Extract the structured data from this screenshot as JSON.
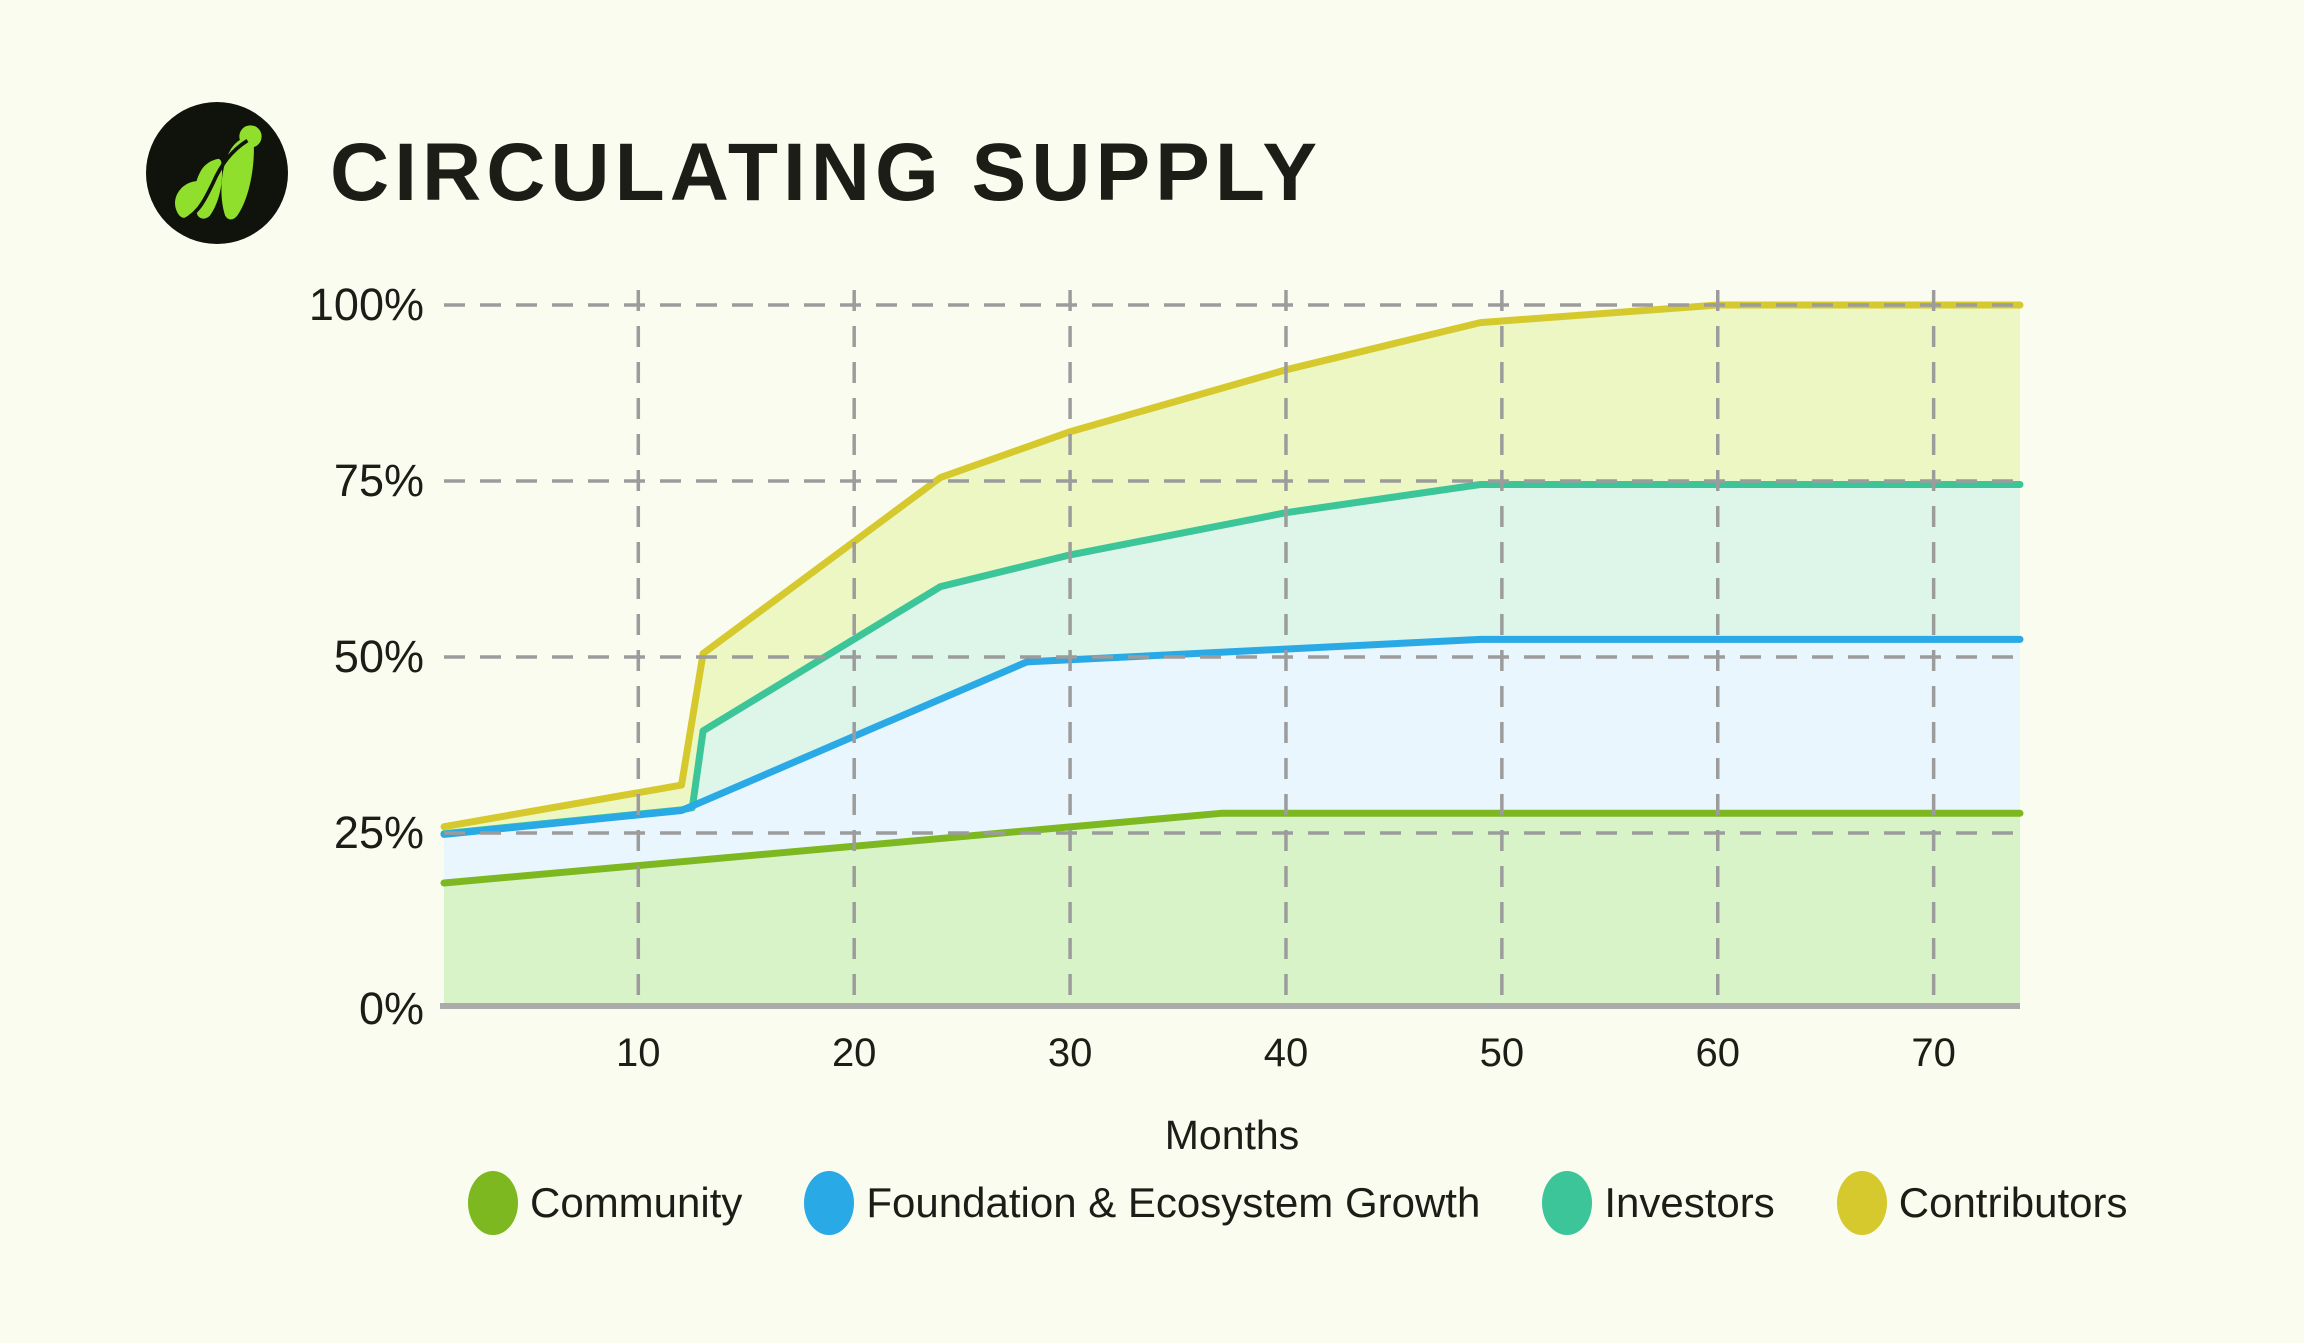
{
  "page": {
    "background_color": "#fafcf0",
    "text_color": "#1c1d17"
  },
  "header": {
    "title": "CIRCULATING SUPPLY",
    "logo_icon": "growth-leaves-logo",
    "logo_colors": {
      "circle": "#10120c",
      "leaf": "#90df2c"
    }
  },
  "chart_data": {
    "type": "area",
    "stacked": true,
    "title": "CIRCULATING SUPPLY",
    "xlabel": "Months",
    "x_range": [
      1,
      74
    ],
    "y_range": [
      0,
      100
    ],
    "x_ticks": [
      10,
      20,
      30,
      40,
      50,
      60,
      70
    ],
    "y_ticks": [
      {
        "value": 100,
        "label": "100%"
      },
      {
        "value": 75,
        "label": "75%"
      },
      {
        "value": 50,
        "label": "50%"
      },
      {
        "value": 25,
        "label": "25%"
      },
      {
        "value": 0,
        "label": "0%"
      }
    ],
    "grid": "dashed",
    "legend_position": "bottom",
    "values_unit": "percent of total supply; each series value is the cumulative stacked top of that band",
    "series": [
      {
        "name": "Community",
        "color": "#7eb821",
        "fill": "#d9f3c9",
        "points": [
          [
            1,
            17.9
          ],
          [
            37,
            27.8
          ],
          [
            74,
            27.8
          ]
        ]
      },
      {
        "name": "Foundation & Ecosystem Growth",
        "color": "#29a9e5",
        "fill": "#e9f6fd",
        "points": [
          [
            1,
            24.8
          ],
          [
            12,
            28.2
          ],
          [
            13,
            29.5
          ],
          [
            28,
            49.3
          ],
          [
            49,
            52.5
          ],
          [
            74,
            52.5
          ]
        ]
      },
      {
        "name": "Investors",
        "color": "#3cc598",
        "fill": "#def5ea",
        "points": [
          [
            1,
            24.9
          ],
          [
            12,
            28.3
          ],
          [
            12.5,
            28.6
          ],
          [
            13,
            39.5
          ],
          [
            24,
            60
          ],
          [
            30,
            64.5
          ],
          [
            40,
            70.5
          ],
          [
            49,
            74.5
          ],
          [
            74,
            74.5
          ]
        ]
      },
      {
        "name": "Contributors",
        "color": "#d6c92e",
        "fill": "#edf7c3",
        "points": [
          [
            1,
            25.9
          ],
          [
            12,
            31.8
          ],
          [
            13,
            50.5
          ],
          [
            24,
            75.5
          ],
          [
            30,
            82
          ],
          [
            40,
            90.8
          ],
          [
            49,
            97.5
          ],
          [
            60,
            100
          ],
          [
            74,
            100
          ]
        ]
      }
    ],
    "axis_color": "#ababab",
    "grid_color": "#9c9c9c"
  }
}
